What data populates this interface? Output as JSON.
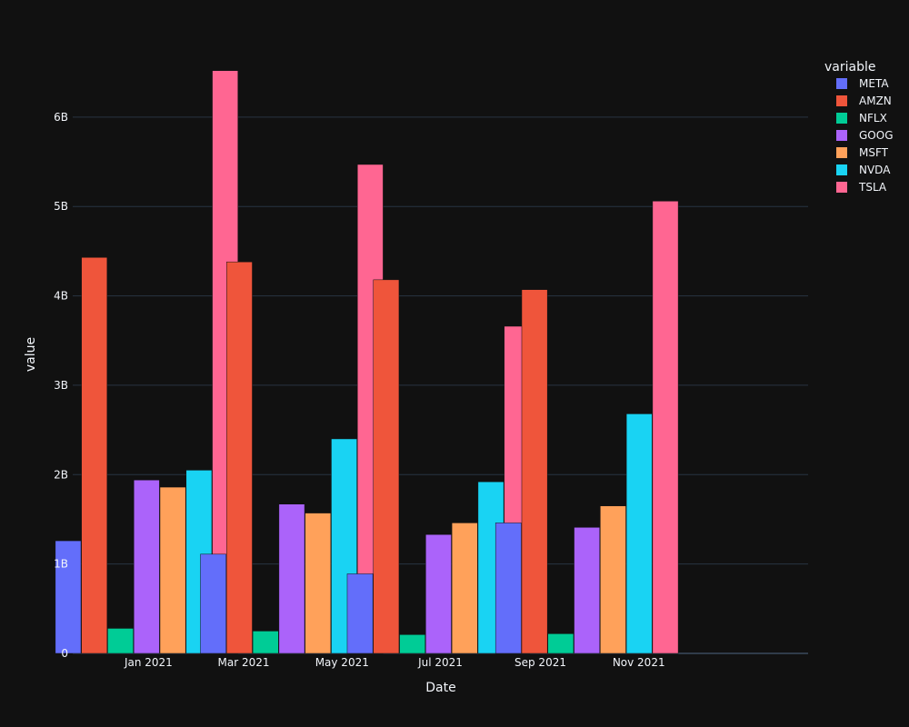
{
  "chart_data": {
    "type": "bar",
    "xlabel": "Date",
    "ylabel": "value",
    "ylim": [
      0,
      6.7
    ],
    "yticks": [
      {
        "value": 0,
        "label": "0"
      },
      {
        "value": 1,
        "label": "1B"
      },
      {
        "value": 2,
        "label": "2B"
      },
      {
        "value": 3,
        "label": "3B"
      },
      {
        "value": 4,
        "label": "4B"
      },
      {
        "value": 5,
        "label": "5B"
      },
      {
        "value": 6,
        "label": "6B"
      }
    ],
    "xticks": [
      "Jan 2021",
      "Mar 2021",
      "May 2021",
      "Jul 2021",
      "Sep 2021",
      "Nov 2021"
    ],
    "groups": [
      "2020-12-31",
      "2021-03-31",
      "2021-06-30",
      "2021-09-30",
      "2021-12-31"
    ],
    "legend_title": "variable",
    "legend_position": "top-right",
    "grid": true,
    "series": [
      {
        "name": "META",
        "color": "#636efa",
        "values": [
          1.26,
          1.11,
          0.89,
          1.46,
          null
        ]
      },
      {
        "name": "AMZN",
        "color": "#ef553b",
        "values": [
          4.43,
          4.38,
          4.18,
          4.07,
          null
        ]
      },
      {
        "name": "NFLX",
        "color": "#00cc96",
        "values": [
          0.28,
          0.25,
          0.21,
          0.22,
          null
        ]
      },
      {
        "name": "GOOG",
        "color": "#ab63fa",
        "values": [
          1.94,
          1.67,
          1.33,
          1.41,
          null
        ]
      },
      {
        "name": "MSFT",
        "color": "#ffa15a",
        "values": [
          1.86,
          1.57,
          1.46,
          1.65,
          null
        ]
      },
      {
        "name": "NVDA",
        "color": "#19d3f3",
        "values": [
          2.05,
          2.4,
          1.92,
          2.68,
          null
        ]
      },
      {
        "name": "TSLA",
        "color": "#ff6692",
        "values": [
          6.52,
          5.47,
          3.66,
          5.06,
          null
        ]
      }
    ]
  }
}
